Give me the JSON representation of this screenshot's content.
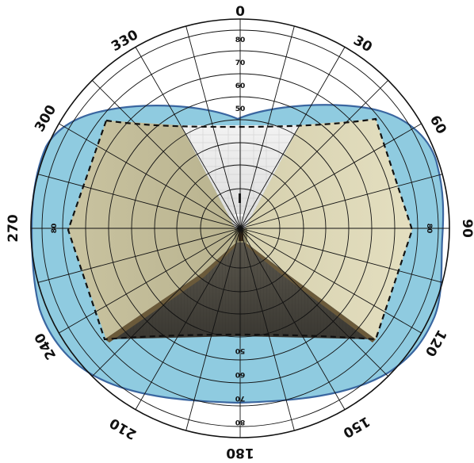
{
  "angle_labels": {
    "a0": "0",
    "a30": "30",
    "a60": "60",
    "a90": "90",
    "a120": "120",
    "a150": "150",
    "a180": "180",
    "a210": "210",
    "a240": "240",
    "a270": "270",
    "a300": "300",
    "a330": "330"
  },
  "ring_labels": {
    "top": [
      "80",
      "70",
      "60",
      "50"
    ],
    "bottom": [
      "50",
      "60",
      "70",
      "80"
    ],
    "left": "80",
    "right": "80"
  },
  "colors": {
    "field_fill": "#8fcbe0",
    "field_stroke": "#3a66a0",
    "grid": "#111111",
    "wall": "#d8d2ad",
    "ceiling": "#e8e8e8",
    "floor": "#4a4740",
    "baseboard": "#6b5a3a"
  }
}
